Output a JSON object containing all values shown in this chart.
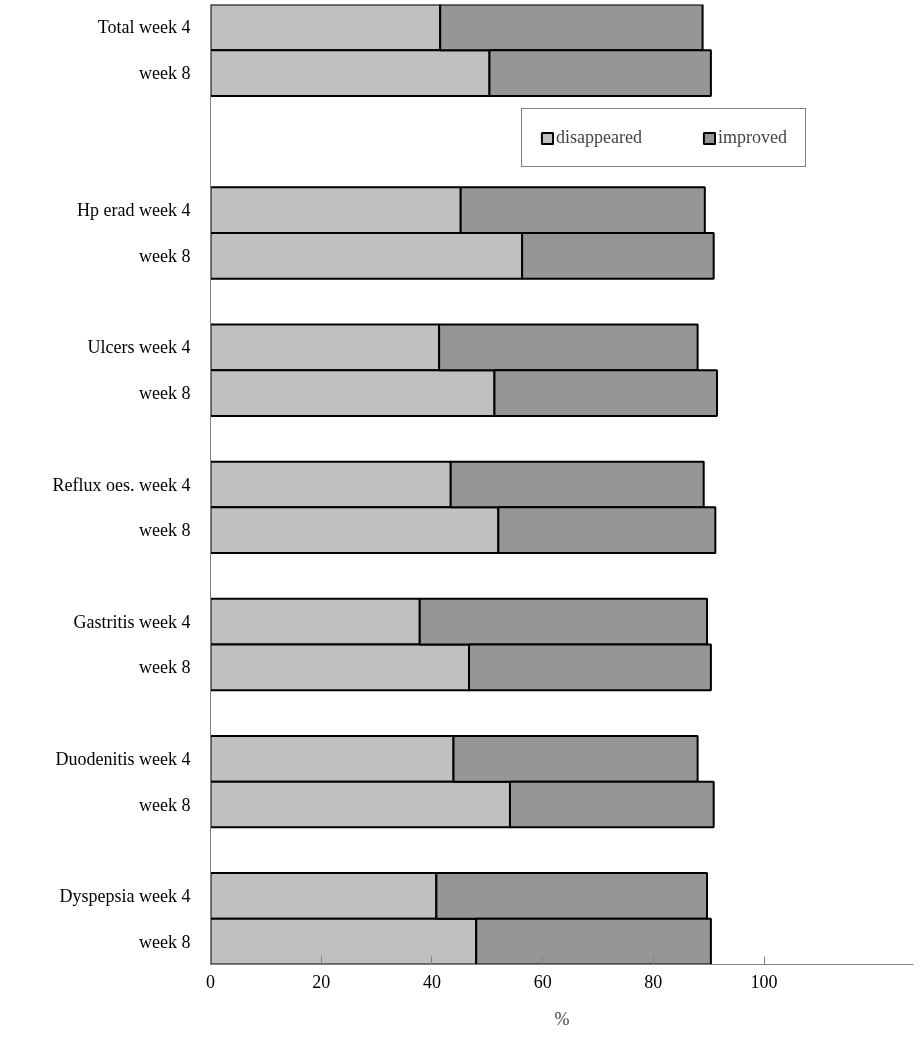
{
  "chart_data": {
    "type": "bar",
    "orientation": "horizontal",
    "stacked": true,
    "xlabel": "%",
    "categories": [
      "Total week 4",
      "week 8",
      null,
      null,
      "Hp erad week 4",
      "week 8",
      null,
      "Ulcers week 4",
      "week 8",
      null,
      "Reflux oes. week 4",
      "week 8",
      null,
      "Gastritis week 4",
      "week 8",
      null,
      "Duodenitis week 4",
      "week 8",
      null,
      "Dyspepsia week 4",
      "week 8"
    ],
    "series": [
      {
        "name": "disappeared",
        "color": "#c0c0c0",
        "values": [
          41.5,
          50.4,
          null,
          null,
          45.2,
          56.3,
          null,
          41.3,
          51.3,
          null,
          43.4,
          52.0,
          null,
          37.8,
          46.7,
          null,
          43.9,
          54.1,
          null,
          40.8,
          48.0
        ]
      },
      {
        "name": "improved",
        "color": "#969696",
        "values": [
          47.4,
          40.0,
          null,
          null,
          44.1,
          34.6,
          null,
          46.7,
          40.2,
          null,
          45.7,
          39.2,
          null,
          51.9,
          43.7,
          null,
          44.1,
          36.8,
          null,
          48.9,
          42.4
        ]
      }
    ],
    "xlim": [
      0,
      127
    ],
    "xticks": [
      0,
      20,
      40,
      60,
      80,
      100
    ],
    "grid": false,
    "legend": "top right"
  }
}
